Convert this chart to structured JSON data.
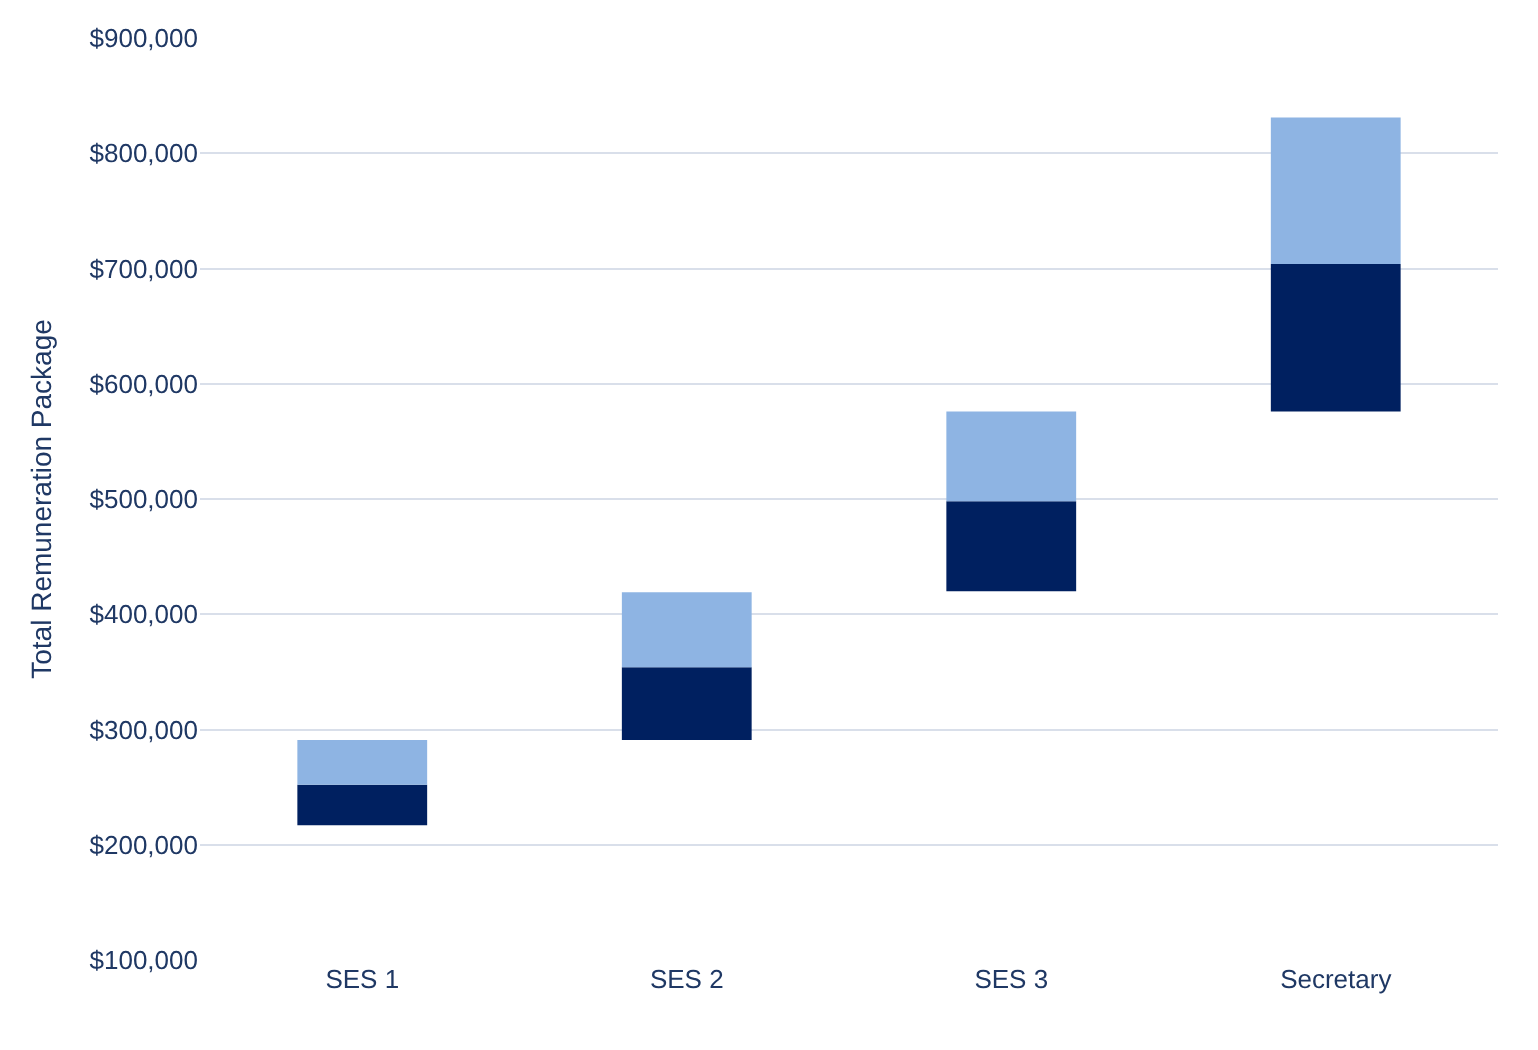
{
  "chart_data": {
    "type": "bar",
    "ylabel": "Total Remuneration Package",
    "categories": [
      "SES 1",
      "SES 2",
      "SES 3",
      "Secretary"
    ],
    "series": [
      {
        "color": "#002060",
        "base": [
          217000,
          291000,
          420000,
          576000
        ],
        "values": [
          35000,
          63000,
          78000,
          128000
        ]
      },
      {
        "color": "#8eb4e3",
        "base": [
          252000,
          354000,
          498000,
          704000
        ],
        "values": [
          39000,
          65000,
          78000,
          127000
        ]
      }
    ],
    "ylim": [
      100000,
      900000
    ],
    "yticks": [
      {
        "value": 100000,
        "label": "$100,000"
      },
      {
        "value": 200000,
        "label": "$200,000"
      },
      {
        "value": 300000,
        "label": "$300,000"
      },
      {
        "value": 400000,
        "label": "$400,000"
      },
      {
        "value": 500000,
        "label": "$500,000"
      },
      {
        "value": 600000,
        "label": "$600,000"
      },
      {
        "value": 700000,
        "label": "$700,000"
      },
      {
        "value": 800000,
        "label": "$800,000"
      },
      {
        "value": 900000,
        "label": "$900,000"
      }
    ],
    "grid": "y"
  }
}
